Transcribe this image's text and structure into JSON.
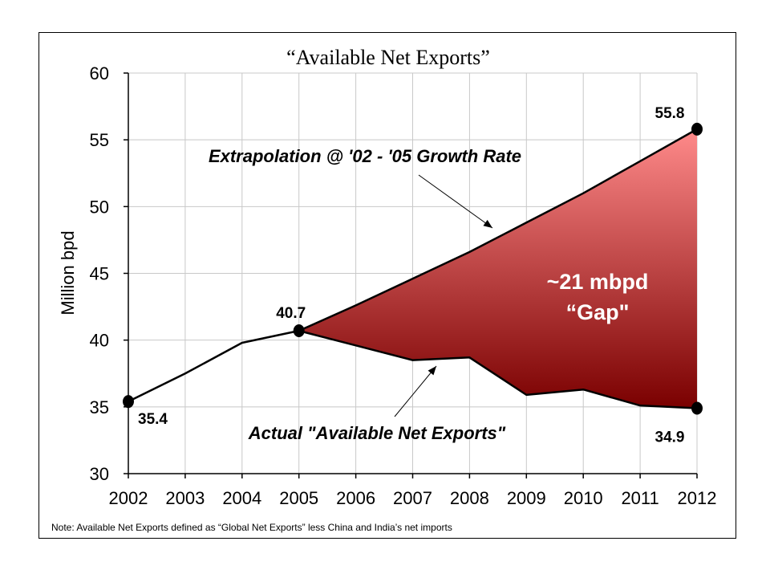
{
  "chart_data": {
    "type": "line",
    "title": "“Available Net Exports”",
    "xlabel": "",
    "ylabel": "Million bpd",
    "ylim": [
      30,
      60
    ],
    "yticks": [
      30,
      35,
      40,
      45,
      50,
      55,
      60
    ],
    "categories": [
      "2002",
      "2003",
      "2004",
      "2005",
      "2006",
      "2007",
      "2008",
      "2009",
      "2010",
      "2011",
      "2012"
    ],
    "series": [
      {
        "name": "Actual \"Available Net Exports\"",
        "x": [
          2002,
          2003,
          2004,
          2005,
          2006,
          2007,
          2008,
          2009,
          2010,
          2011,
          2012
        ],
        "values": [
          35.4,
          37.5,
          39.8,
          40.7,
          39.6,
          38.5,
          38.7,
          35.9,
          36.3,
          35.1,
          34.9
        ]
      },
      {
        "name": "Extrapolation @ '02 - '05 Growth Rate",
        "x": [
          2005,
          2006,
          2007,
          2008,
          2009,
          2010,
          2011,
          2012
        ],
        "values": [
          40.7,
          42.6,
          44.6,
          46.6,
          48.8,
          51.0,
          53.4,
          55.8
        ]
      }
    ],
    "markers": [
      {
        "x": 2002,
        "y": 35.4,
        "label": "35.4"
      },
      {
        "x": 2005,
        "y": 40.7,
        "label": "40.7"
      },
      {
        "x": 2012,
        "y": 55.8,
        "label": "55.8"
      },
      {
        "x": 2012,
        "y": 34.9,
        "label": "34.9"
      }
    ],
    "annotations": {
      "extrapolation": "Extrapolation @ '02 - '05 Growth Rate",
      "actual": "Actual \"Available Net Exports\"",
      "gap_line1": "~21 mbpd",
      "gap_line2": "“Gap\""
    },
    "grid": true,
    "colors": {
      "gap_light": "#ff8a8a",
      "gap_dark": "#7a0000",
      "line": "#000000",
      "grid": "#c8c8c8"
    }
  },
  "note": "Note: Available Net Exports defined as “Global Net Exports” less China and India’s net imports"
}
